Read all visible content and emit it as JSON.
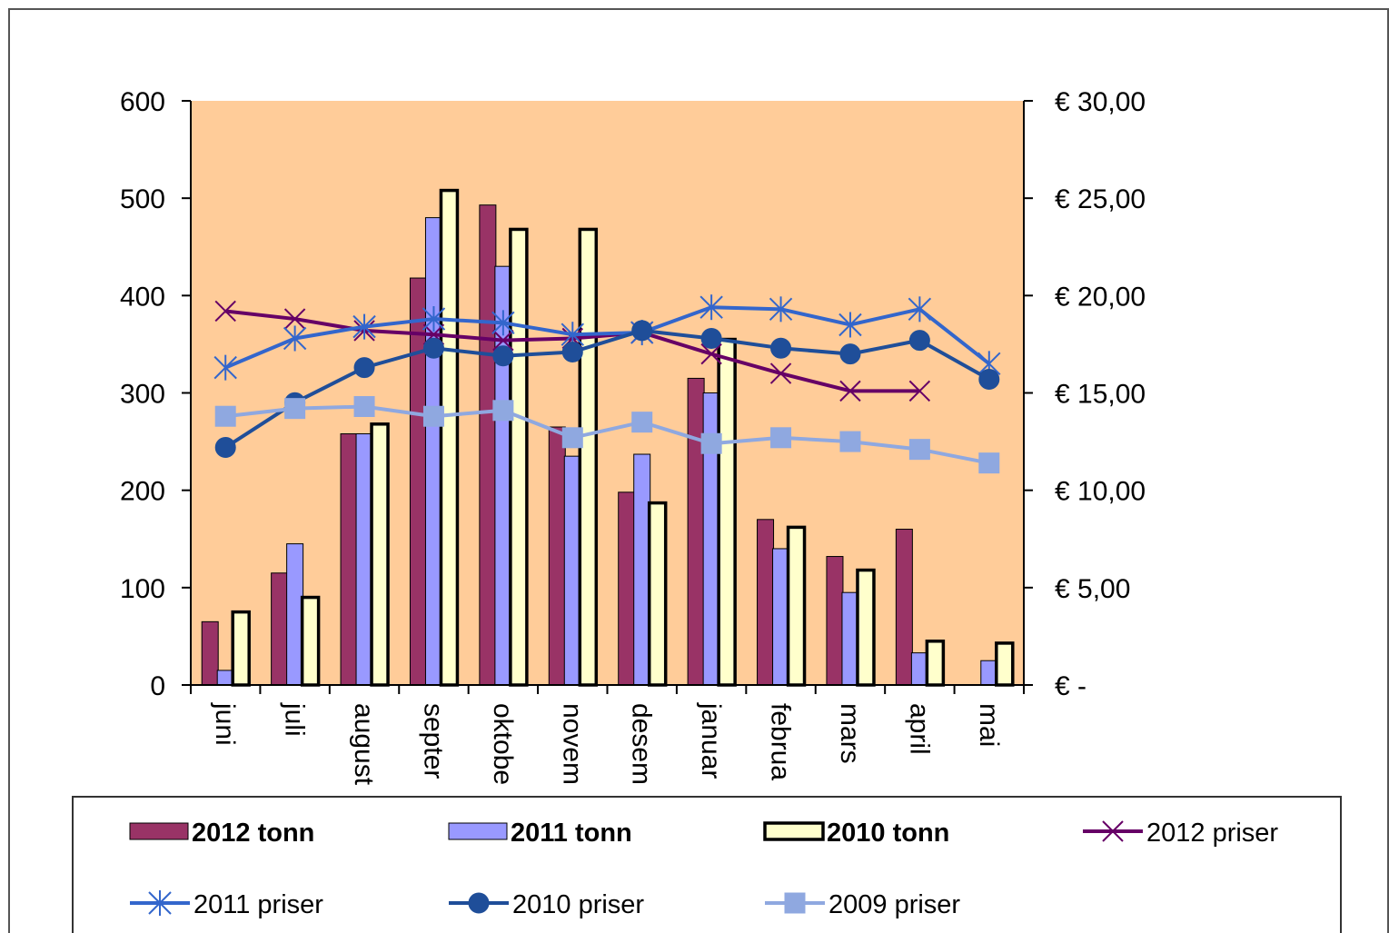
{
  "chart_data": {
    "type": "bar",
    "categories": [
      "juni",
      "juli",
      "august",
      "september",
      "oktober",
      "november",
      "desember",
      "januar",
      "februar",
      "mars",
      "april",
      "mai"
    ],
    "category_labels_visible": [
      "juni",
      "juli",
      "august",
      "septer",
      "oktobe",
      "novem",
      "desem",
      "januar",
      "februa",
      "mars",
      "april",
      "mai"
    ],
    "y_left": {
      "ticks": [
        "600",
        "500",
        "400",
        "300",
        "200",
        "100",
        "0"
      ],
      "range": [
        0,
        600
      ]
    },
    "y_right": {
      "ticks": [
        "€ 30,00",
        "€ 25,00",
        "€ 20,00",
        "€ 15,00",
        "€ 10,00",
        "€ 5,00",
        "€ -"
      ],
      "range": [
        0,
        30
      ]
    },
    "grid": false,
    "legend_position": "bottom",
    "bar_series": [
      {
        "name": "2012 tonn",
        "color": "#993366",
        "values": [
          65,
          115,
          258,
          418,
          493,
          265,
          198,
          315,
          170,
          132,
          160,
          null
        ]
      },
      {
        "name": "2011 tonn",
        "color": "#9999ff",
        "values": [
          15,
          145,
          258,
          480,
          430,
          235,
          237,
          300,
          140,
          95,
          33,
          25
        ]
      },
      {
        "name": "2010 tonn",
        "color": "#ffffcc",
        "values": [
          75,
          90,
          268,
          508,
          468,
          468,
          187,
          355,
          162,
          118,
          45,
          43
        ]
      }
    ],
    "line_series": [
      {
        "name": "2012 priser",
        "color": "#660066",
        "marker": "x",
        "values": [
          19.2,
          18.8,
          18.2,
          18.0,
          17.7,
          17.8,
          18.1,
          17.0,
          16.0,
          15.1,
          15.1,
          null
        ]
      },
      {
        "name": "2011 priser",
        "color": "#3366cc",
        "marker": "asterisk",
        "values": [
          16.3,
          17.8,
          18.4,
          18.8,
          18.6,
          18.0,
          18.1,
          19.4,
          19.3,
          18.5,
          19.3,
          16.5
        ]
      },
      {
        "name": "2010 priser",
        "color": "#1f4e99",
        "marker": "circle",
        "values": [
          12.2,
          14.5,
          16.3,
          17.3,
          16.9,
          17.1,
          18.2,
          17.8,
          17.3,
          17.0,
          17.7,
          15.7
        ]
      },
      {
        "name": "2009 priser",
        "color": "#8fa8e0",
        "marker": "square",
        "values": [
          13.8,
          14.2,
          14.3,
          13.8,
          14.1,
          12.7,
          13.5,
          12.4,
          12.7,
          12.5,
          12.1,
          11.4
        ]
      }
    ]
  }
}
